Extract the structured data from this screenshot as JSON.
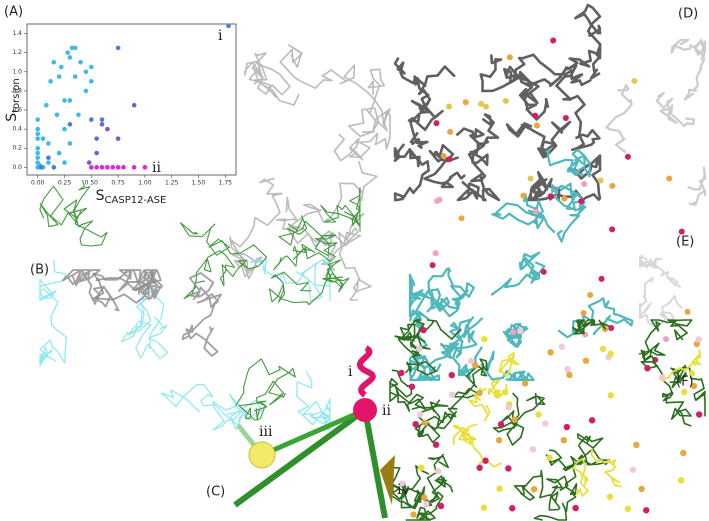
{
  "panel_labels": [
    "(A)",
    "(B)",
    "(C)",
    "(D)",
    "(E)",
    "(F)"
  ],
  "panel_c_labels": [
    "i",
    "ii",
    "iii",
    "iv"
  ],
  "chart_data": {
    "type": "scatter",
    "xlabel": {
      "main": "S",
      "sub": "CASP12-ASE"
    },
    "ylabel": {
      "main": "S",
      "sub": "torsion"
    },
    "annotations": [
      "i",
      "ii"
    ],
    "xlim": [
      -0.1,
      1.85
    ],
    "ylim": [
      -0.08,
      1.5
    ],
    "xticks": [
      {
        "value": 0,
        "label": "0.00"
      },
      0.25,
      {
        "value": 0.5,
        "label": "0.50"
      },
      0.75,
      {
        "value": 1,
        "label": "1.00"
      },
      1.25,
      {
        "value": 1.5,
        "label": "1.50"
      },
      1.75
    ],
    "yticks": [
      {
        "value": 0,
        "label": "0.0"
      },
      0.2,
      0.4,
      0.6,
      0.8,
      {
        "value": 1,
        "label": "1.0"
      },
      1.2,
      1.4
    ],
    "series": [
      {
        "color": "#3dbbe8",
        "x": [
          0,
          0,
          0,
          0,
          0,
          0,
          0,
          0,
          0,
          0.02,
          0.05,
          0.08,
          0.1,
          0.12,
          0.15,
          0.18,
          0.2,
          0.22,
          0.25,
          0.25,
          0.28,
          0.3,
          0.3,
          0.32,
          0.35,
          0.35,
          0.4,
          0.38,
          0.45,
          0.45,
          0.5,
          0.5,
          0.25,
          0.2,
          0.3,
          0.1,
          0.05
        ],
        "values": [
          0.5,
          0.4,
          0.35,
          0.3,
          0.2,
          0.15,
          0.1,
          0.05,
          0,
          0.02,
          0.3,
          0.65,
          0.25,
          0.9,
          1.1,
          0.55,
          0.95,
          1.05,
          0.7,
          0.4,
          1.2,
          1.15,
          0.7,
          1.25,
          1.25,
          0.95,
          1.1,
          0.55,
          0.8,
          1.0,
          1.05,
          0.9,
          0.05,
          0.15,
          0.25,
          0.05,
          0
        ]
      },
      {
        "color": "#4b7bd6",
        "x": [
          0.75,
          0.5,
          0.3,
          0.55,
          1.78,
          0.15,
          0.1,
          0.03,
          0.6
        ],
        "values": [
          1.25,
          0.5,
          0.45,
          0.3,
          1.48,
          0,
          0.1,
          0,
          0.5
        ]
      },
      {
        "color": "#7a5cc8",
        "x": [
          0.6,
          0.65,
          0.9,
          0.75,
          0.55,
          0.48
        ],
        "values": [
          0.45,
          0.4,
          0.65,
          0.3,
          0.15,
          0.05
        ]
      },
      {
        "color": "#e026d6",
        "x": [
          0.5,
          0.55,
          0.6,
          0.65,
          0.7,
          0.75,
          0.8,
          0.9,
          1.0
        ],
        "values": [
          0,
          0,
          0,
          0,
          0,
          0,
          0,
          0,
          0
        ]
      }
    ]
  }
}
